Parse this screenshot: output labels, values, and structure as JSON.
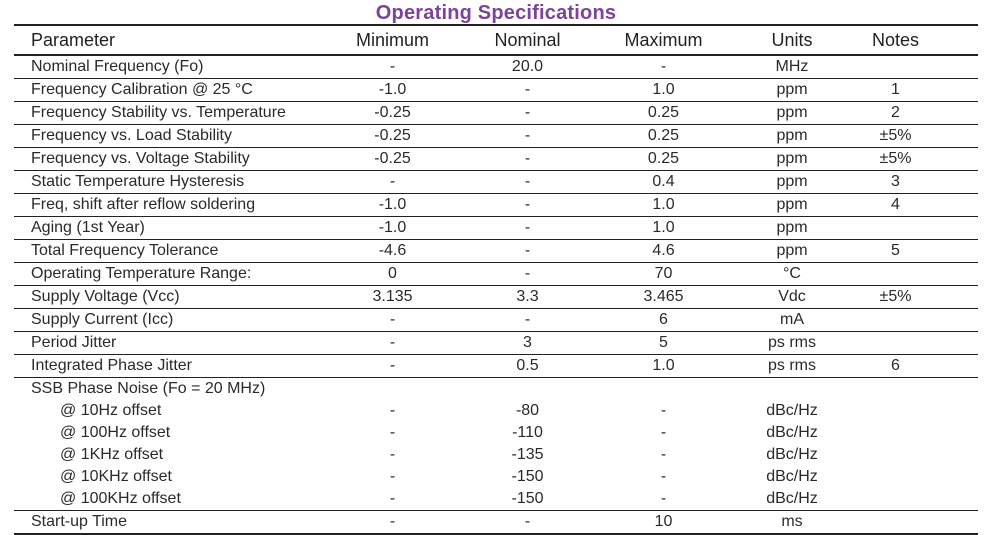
{
  "title": "Operating Specifications",
  "colors": {
    "title_purple": "#7c4399",
    "text": "#2a2a2a",
    "rule_line": "#212121",
    "background": "#ffffff"
  },
  "table": {
    "columns": {
      "parameter": "Parameter",
      "minimum": "Minimum",
      "nominal": "Nominal",
      "maximum": "Maximum",
      "units": "Units",
      "notes": "Notes"
    },
    "rows": [
      {
        "parameter": "Nominal Frequency (Fo)",
        "minimum": "-",
        "nominal": "20.0",
        "maximum": "-",
        "units": "MHz",
        "notes": ""
      },
      {
        "parameter": "Frequency Calibration @ 25 °C",
        "minimum": "-1.0",
        "nominal": "-",
        "maximum": "1.0",
        "units": "ppm",
        "notes": "1"
      },
      {
        "parameter": "Frequency Stability vs. Temperature",
        "minimum": "-0.25",
        "nominal": "-",
        "maximum": "0.25",
        "units": "ppm",
        "notes": "2"
      },
      {
        "parameter": "Frequency vs. Load Stability",
        "minimum": "-0.25",
        "nominal": "-",
        "maximum": "0.25",
        "units": "ppm",
        "notes": "±5%"
      },
      {
        "parameter": "Frequency vs. Voltage Stability",
        "minimum": "-0.25",
        "nominal": "-",
        "maximum": "0.25",
        "units": "ppm",
        "notes": "±5%"
      },
      {
        "parameter": "Static Temperature Hysteresis",
        "minimum": "-",
        "nominal": "-",
        "maximum": "0.4",
        "units": "ppm",
        "notes": "3"
      },
      {
        "parameter": "Freq, shift after reflow soldering",
        "minimum": "-1.0",
        "nominal": "-",
        "maximum": "1.0",
        "units": "ppm",
        "notes": "4"
      },
      {
        "parameter": "Aging (1st Year)",
        "minimum": "-1.0",
        "nominal": "-",
        "maximum": "1.0",
        "units": "ppm",
        "notes": ""
      },
      {
        "parameter": "Total Frequency Tolerance",
        "minimum": "-4.6",
        "nominal": "-",
        "maximum": "4.6",
        "units": "ppm",
        "notes": "5"
      },
      {
        "parameter": "Operating Temperature Range:",
        "minimum": "0",
        "nominal": "-",
        "maximum": "70",
        "units": "°C",
        "notes": ""
      },
      {
        "parameter": "Supply Voltage (Vcc)",
        "minimum": "3.135",
        "nominal": "3.3",
        "maximum": "3.465",
        "units": "Vdc",
        "notes": "±5%"
      },
      {
        "parameter": "Supply Current (Icc)",
        "minimum": "-",
        "nominal": "-",
        "maximum": "6",
        "units": "mA",
        "notes": ""
      },
      {
        "parameter": "Period Jitter",
        "minimum": "-",
        "nominal": "3",
        "maximum": "5",
        "units": "ps rms",
        "notes": ""
      },
      {
        "parameter": "Integrated Phase Jitter",
        "minimum": "-",
        "nominal": "0.5",
        "maximum": "1.0",
        "units": "ps rms",
        "notes": "6"
      },
      {
        "parameter": "SSB Phase Noise (Fo = 20 MHz)",
        "minimum": "",
        "nominal": "",
        "maximum": "",
        "units": "",
        "notes": "",
        "group": true,
        "no_line": true
      },
      {
        "parameter": "@ 10Hz offset",
        "minimum": "-",
        "nominal": "-80",
        "maximum": "-",
        "units": "dBc/Hz",
        "notes": "",
        "indent": true,
        "no_line": true
      },
      {
        "parameter": "@ 100Hz offset",
        "minimum": "-",
        "nominal": "-110",
        "maximum": "-",
        "units": "dBc/Hz",
        "notes": "",
        "indent": true,
        "no_line": true
      },
      {
        "parameter": "@ 1KHz offset",
        "minimum": "-",
        "nominal": "-135",
        "maximum": "-",
        "units": "dBc/Hz",
        "notes": "",
        "indent": true,
        "no_line": true
      },
      {
        "parameter": "@ 10KHz offset",
        "minimum": "-",
        "nominal": "-150",
        "maximum": "-",
        "units": "dBc/Hz",
        "notes": "",
        "indent": true,
        "no_line": true
      },
      {
        "parameter": "@ 100KHz offset",
        "minimum": "-",
        "nominal": "-150",
        "maximum": "-",
        "units": "dBc/Hz",
        "notes": "",
        "indent": true
      },
      {
        "parameter": "Start-up Time",
        "minimum": "-",
        "nominal": "-",
        "maximum": "10",
        "units": "ms",
        "notes": ""
      }
    ]
  }
}
